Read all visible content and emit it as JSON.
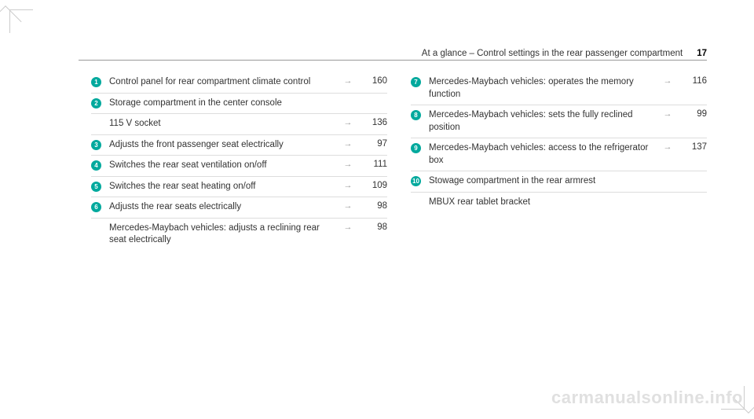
{
  "header": {
    "title": "At a glance – Control settings in the rear passenger compartment",
    "page_number": "17"
  },
  "left_column": [
    {
      "num": "1",
      "desc": "Control panel for rear compartment climate control",
      "arrow": "→",
      "page": "160"
    },
    {
      "num": "2",
      "desc": "Storage compartment in the center console",
      "arrow": "",
      "page": ""
    },
    {
      "num": "",
      "desc": "115 V socket",
      "arrow": "→",
      "page": "136"
    },
    {
      "num": "3",
      "desc": "Adjusts the front passenger seat electrically",
      "arrow": "→",
      "page": "97"
    },
    {
      "num": "4",
      "desc": "Switches the rear seat ventilation on/off",
      "arrow": "→",
      "page": "111"
    },
    {
      "num": "5",
      "desc": "Switches the rear seat heating on/off",
      "arrow": "→",
      "page": "109"
    },
    {
      "num": "6",
      "desc": "Adjusts the rear seats electrically",
      "arrow": "→",
      "page": "98"
    },
    {
      "num": "",
      "desc": "Mercedes-Maybach vehicles: adjusts a reclining rear seat electrically",
      "arrow": "→",
      "page": "98"
    }
  ],
  "right_column": [
    {
      "num": "7",
      "desc": "Mercedes-Maybach vehicles: operates the memory function",
      "arrow": "→",
      "page": "116"
    },
    {
      "num": "8",
      "desc": "Mercedes-Maybach vehicles: sets the fully reclined position",
      "arrow": "→",
      "page": "99"
    },
    {
      "num": "9",
      "desc": "Mercedes-Maybach vehicles: access to the refrigerator box",
      "arrow": "→",
      "page": "137"
    },
    {
      "num": "10",
      "desc": "Stowage compartment in the rear armrest",
      "arrow": "",
      "page": ""
    },
    {
      "num": "",
      "desc": "MBUX rear tablet bracket",
      "arrow": "",
      "page": ""
    }
  ],
  "watermark": "carmanualsonline.info",
  "colors": {
    "marker_bg": "#00a99d",
    "marker_fg": "#ffffff",
    "text": "#333333",
    "border": "#dddddd",
    "watermark": "#e0e0e0"
  }
}
